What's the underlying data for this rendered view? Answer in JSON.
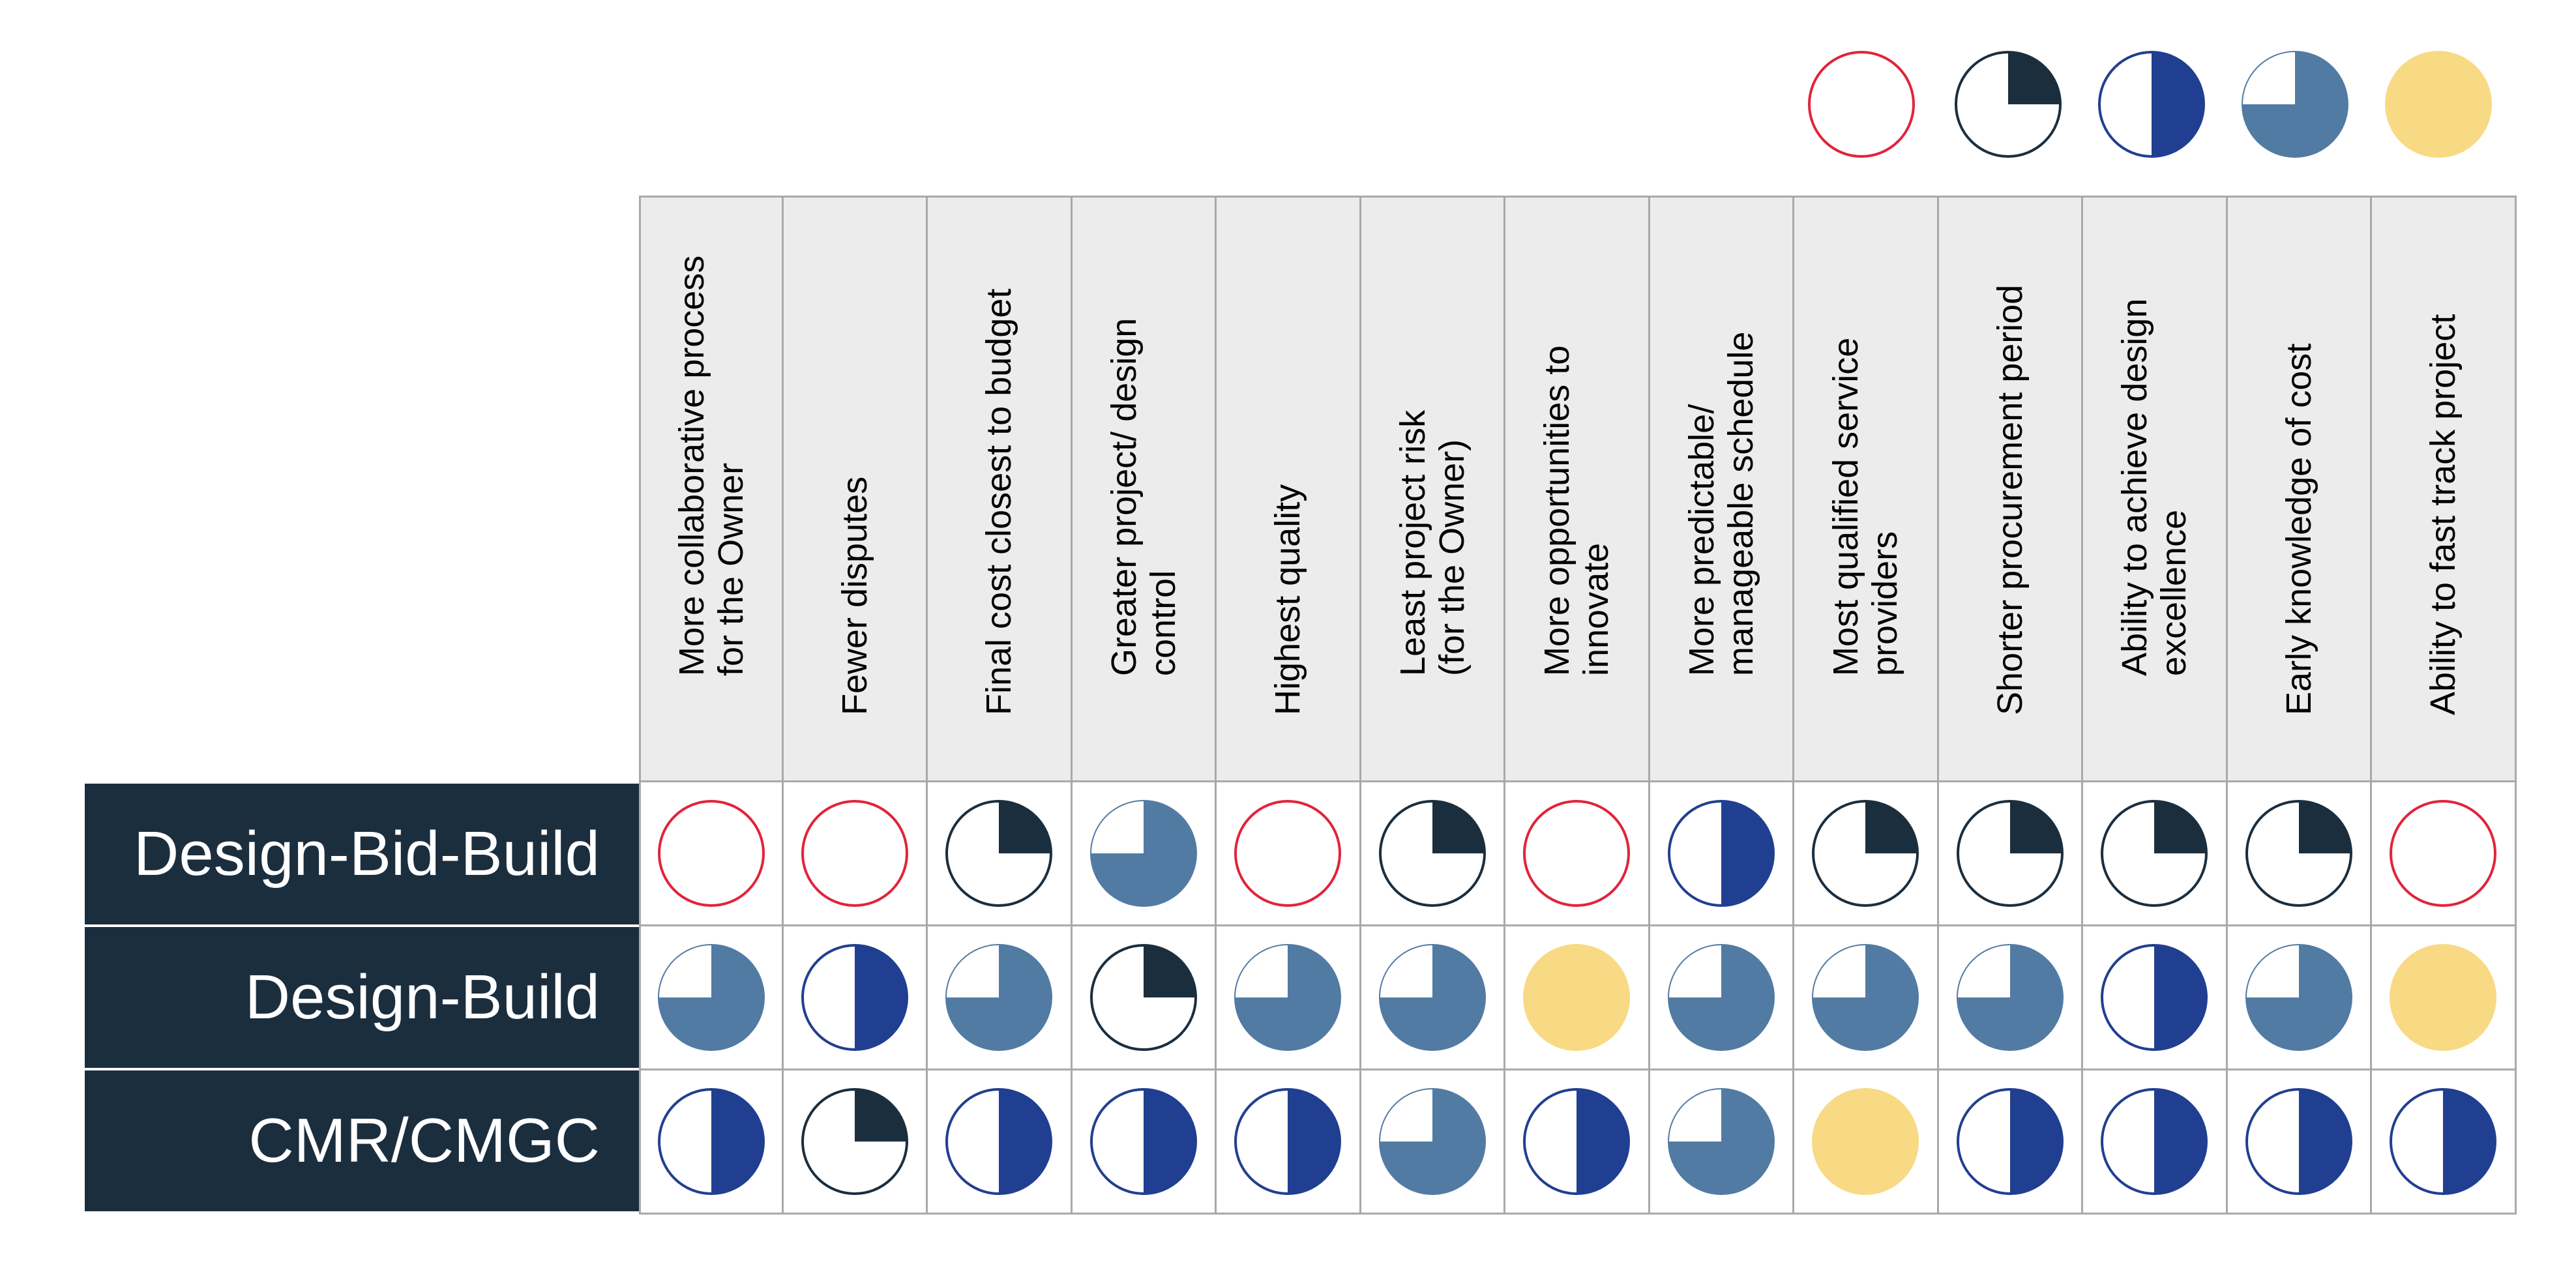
{
  "legend": {
    "symbols": [
      "empty",
      "quarter",
      "half",
      "three-quarter",
      "full"
    ]
  },
  "columns": [
    "More collaborative process\nfor the Owner",
    "Fewer disputes",
    "Final cost closest to budget",
    "Greater project/ design\ncontrol",
    "Highest quality",
    "Least project risk\n(for the Owner)",
    "More opportunities to\ninnovate",
    "More predictable/\nmanageable schedule",
    "Most qualified service\nproviders",
    "Shorter procurement period",
    "Ability to achieve design\nexcellence",
    "Early knowledge of cost",
    "Ability to fast track project"
  ],
  "rows": [
    {
      "label": "Design-Bid-Build",
      "ratings": [
        "empty",
        "empty",
        "quarter",
        "three-quarter",
        "empty",
        "quarter",
        "empty",
        "half",
        "quarter",
        "quarter",
        "quarter",
        "quarter",
        "empty"
      ]
    },
    {
      "label": "Design-Build",
      "ratings": [
        "three-quarter",
        "half",
        "three-quarter",
        "quarter",
        "three-quarter",
        "three-quarter",
        "full",
        "three-quarter",
        "three-quarter",
        "three-quarter",
        "half",
        "three-quarter",
        "full"
      ]
    },
    {
      "label": "CMR/CMGC",
      "ratings": [
        "half",
        "quarter",
        "half",
        "half",
        "half",
        "three-quarter",
        "half",
        "three-quarter",
        "full",
        "half",
        "half",
        "half",
        "half"
      ]
    }
  ],
  "colors": {
    "empty_stroke": "#e0243a",
    "quarter": "#1b2e3e",
    "half": "#213f91",
    "three_quarter": "#527ba3",
    "full": "#f8da84",
    "row_label_bg": "#1b2e3e",
    "header_bg": "#ececec",
    "grid_line": "#a9a9a9"
  }
}
